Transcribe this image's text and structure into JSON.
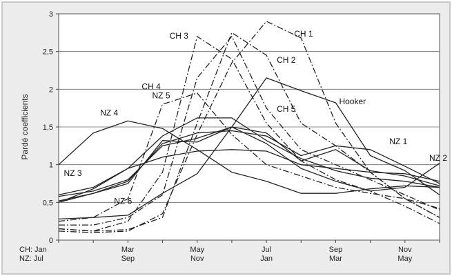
{
  "chart_data": {
    "type": "line",
    "title": "",
    "ylabel": "Pardé coefficients",
    "xlabel": "",
    "ylim": [
      0,
      3
    ],
    "yticks": [
      "0",
      "0,5",
      "1",
      "1,5",
      "2",
      "2,5",
      "3"
    ],
    "grid": "horizontal",
    "months": 12,
    "xtick_labels": [
      {
        "line1": "CH: Jan",
        "line2": "NZ: Jul",
        "month": 1
      },
      {
        "line1": "Mar",
        "line2": "Sep",
        "month": 3
      },
      {
        "line1": "May",
        "line2": "Nov",
        "month": 5
      },
      {
        "line1": "Jul",
        "line2": "Jan",
        "month": 7
      },
      {
        "line1": "Sep",
        "line2": "Mar",
        "month": 9
      },
      {
        "line1": "Nov",
        "line2": "May",
        "month": 11
      }
    ],
    "series": [
      {
        "name": "CH 1",
        "style": "dashdot",
        "values": [
          0.12,
          0.1,
          0.12,
          0.35,
          1.4,
          2.35,
          2.9,
          2.68,
          1.55,
          0.9,
          0.55,
          0.3
        ],
        "label_month": 7.8,
        "label_value": 2.7
      },
      {
        "name": "CH 2",
        "style": "dashdot",
        "values": [
          0.15,
          0.12,
          0.14,
          0.3,
          1.55,
          2.75,
          2.45,
          1.55,
          1.25,
          0.9,
          0.55,
          0.3
        ],
        "label_month": 7.3,
        "label_value": 2.35
      },
      {
        "name": "CH 3",
        "style": "dashdot",
        "values": [
          0.15,
          0.12,
          0.25,
          0.9,
          2.7,
          2.4,
          1.55,
          1.05,
          0.8,
          0.65,
          0.45,
          0.22
        ],
        "label_month": 4.2,
        "label_value": 2.67
      },
      {
        "name": "CH 4",
        "style": "dashdot",
        "values": [
          0.25,
          0.3,
          0.55,
          1.8,
          1.95,
          1.4,
          1.0,
          0.85,
          0.7,
          0.62,
          0.55,
          0.42
        ],
        "label_month": 3.4,
        "label_value": 2.0
      },
      {
        "name": "CH 5",
        "style": "dashdot",
        "values": [
          0.2,
          0.2,
          0.3,
          0.6,
          2.15,
          2.7,
          1.75,
          1.2,
          1.0,
          0.8,
          0.6,
          0.4
        ],
        "label_month": 7.3,
        "label_value": 1.7
      },
      {
        "name": "Hooker",
        "style": "solid",
        "values": [
          0.28,
          0.3,
          0.33,
          0.62,
          0.88,
          1.5,
          2.15,
          1.98,
          1.82,
          1.12,
          0.92,
          0.6
        ],
        "label_month": 9.1,
        "label_value": 1.8
      },
      {
        "name": "NZ 1",
        "style": "solid",
        "values": [
          0.52,
          0.62,
          0.78,
          1.28,
          1.42,
          1.45,
          1.38,
          1.12,
          1.25,
          1.2,
          0.98,
          0.75
        ],
        "label_month": 10.55,
        "label_value": 1.27
      },
      {
        "name": "NZ 2",
        "style": "solid",
        "values": [
          0.58,
          0.65,
          0.8,
          1.25,
          1.35,
          1.5,
          1.28,
          0.95,
          0.78,
          0.65,
          0.7,
          1.02
        ],
        "label_month": 11.7,
        "label_value": 1.05
      },
      {
        "name": "NZ 3",
        "style": "solid",
        "values": [
          0.6,
          0.7,
          0.95,
          1.1,
          1.18,
          1.2,
          1.18,
          1.0,
          0.95,
          0.9,
          0.88,
          0.78
        ],
        "label_month": 1.15,
        "label_value": 0.85
      },
      {
        "name": "NZ 4",
        "style": "solid",
        "values": [
          1.0,
          1.42,
          1.58,
          1.48,
          1.2,
          0.9,
          0.78,
          0.62,
          0.62,
          0.68,
          0.72,
          0.7
        ],
        "label_month": 2.2,
        "label_value": 1.65
      },
      {
        "name": "NZ 5",
        "style": "solid",
        "values": [
          0.5,
          0.68,
          0.95,
          1.38,
          1.62,
          1.62,
          1.32,
          1.08,
          0.92,
          0.82,
          0.78,
          0.7
        ],
        "label_month": 3.7,
        "label_value": 1.88
      },
      {
        "name": "NZ 6",
        "style": "solid",
        "values": [
          0.5,
          0.62,
          0.75,
          1.32,
          1.3,
          1.5,
          1.42,
          1.05,
          1.2,
          0.92,
          0.85,
          0.72
        ],
        "label_month": 2.6,
        "label_value": 0.48
      }
    ]
  }
}
